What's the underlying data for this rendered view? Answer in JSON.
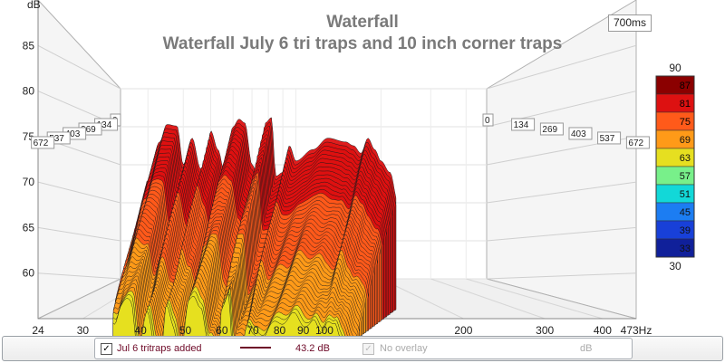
{
  "chart_data": {
    "type": "waterfall",
    "title": "Waterfall",
    "subtitle": "Waterfall July 6 tri traps and 10 inch corner traps",
    "time_window": "700ms",
    "y_unit": "dB",
    "x_unit": "Hz",
    "y_ticks": [
      "85",
      "80",
      "75",
      "70",
      "65",
      "60"
    ],
    "x_ticks": [
      "24",
      "30",
      "40",
      "50",
      "60",
      "70",
      "80",
      "90",
      "100",
      "200",
      "300",
      "400",
      "473Hz"
    ],
    "time_ticks": [
      "0",
      "134",
      "269",
      "403",
      "537",
      "672"
    ],
    "color_scale": {
      "min": "30",
      "max": "90",
      "labels": [
        "87",
        "81",
        "75",
        "69",
        "63",
        "57",
        "51",
        "45",
        "39",
        "33"
      ],
      "colors": [
        "#8b0000",
        "#dd1111",
        "#ff5a1a",
        "#ff9a18",
        "#e6df20",
        "#78f08a",
        "#12d8d8",
        "#1c7df2",
        "#1840d8",
        "#10209a"
      ]
    },
    "series": [
      {
        "name": "Jul 6 tritraps added",
        "freq_hz": [
          24,
          27,
          30,
          33,
          35,
          38,
          40,
          43,
          46,
          48,
          50,
          53,
          56,
          60,
          63,
          66,
          70,
          75,
          78,
          82,
          85,
          90,
          95,
          100,
          115,
          130,
          150,
          160,
          170,
          180,
          190,
          200,
          215,
          230
        ],
        "level_db": [
          59.5,
          62,
          73,
          78,
          80.3,
          80.1,
          75,
          78.5,
          74.5,
          73,
          79.5,
          77,
          74,
          80,
          81,
          80.5,
          75,
          72.5,
          80.5,
          81.2,
          73.5,
          74,
          77.5,
          75.5,
          77,
          78.5,
          78,
          77.5,
          76.5,
          78.5,
          77,
          75.5,
          74,
          70
        ]
      }
    ],
    "legend": [
      {
        "label": "Jul 6 tritraps added",
        "value": "43.2 dB",
        "checked": true,
        "color": "#6e0a28"
      },
      {
        "label": "No overlay",
        "value": "dB",
        "checked": true,
        "enabled": false
      }
    ]
  }
}
